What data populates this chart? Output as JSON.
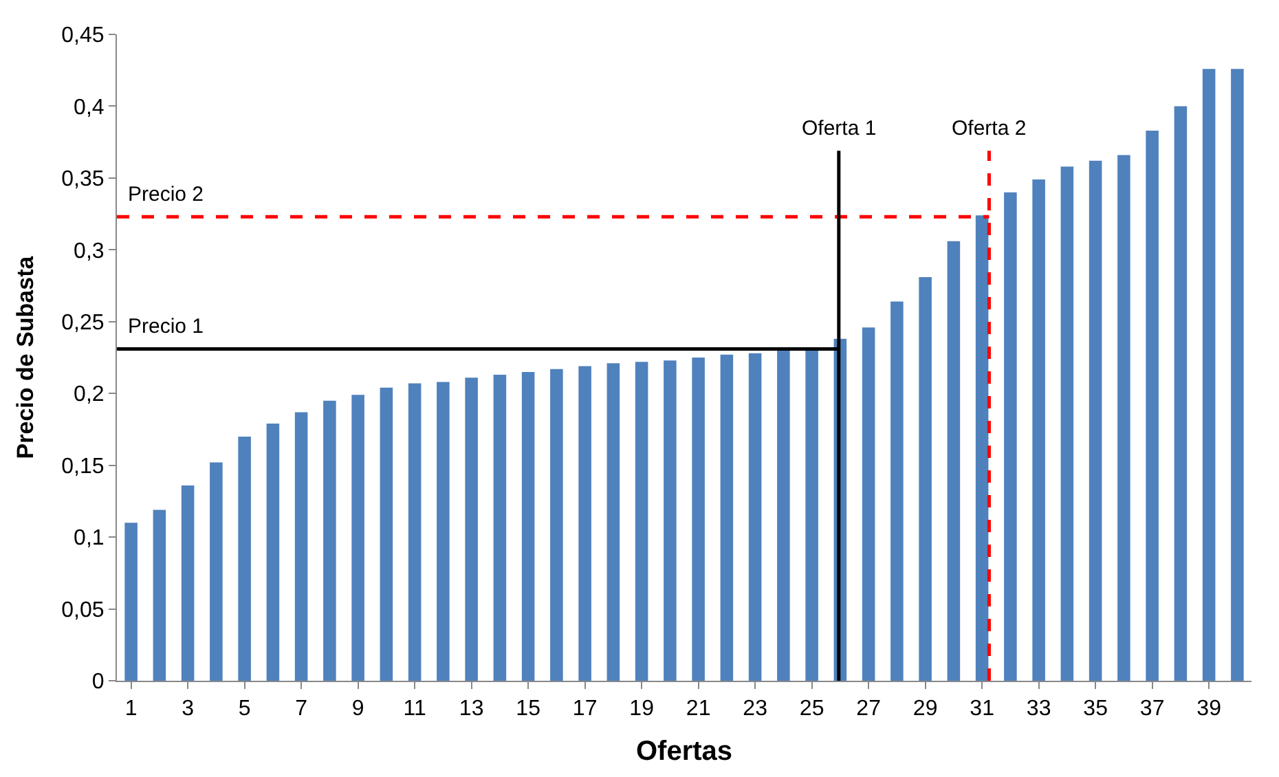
{
  "chart_data": {
    "type": "bar",
    "xlabel": "Ofertas",
    "ylabel": "Precio de Subasta",
    "x": [
      1,
      2,
      3,
      4,
      5,
      6,
      7,
      8,
      9,
      10,
      11,
      12,
      13,
      14,
      15,
      16,
      17,
      18,
      19,
      20,
      21,
      22,
      23,
      24,
      25,
      26,
      27,
      28,
      29,
      30,
      31,
      32,
      33,
      34,
      35,
      36,
      37,
      38,
      39,
      40
    ],
    "values": [
      0.11,
      0.119,
      0.136,
      0.152,
      0.17,
      0.179,
      0.187,
      0.195,
      0.199,
      0.204,
      0.207,
      0.208,
      0.211,
      0.213,
      0.215,
      0.217,
      0.219,
      0.221,
      0.222,
      0.223,
      0.225,
      0.227,
      0.228,
      0.23,
      0.231,
      0.238,
      0.246,
      0.264,
      0.281,
      0.306,
      0.324,
      0.34,
      0.349,
      0.358,
      0.362,
      0.366,
      0.383,
      0.4,
      0.426,
      0.426
    ],
    "color": "#4f81bd",
    "xlim": [
      0.5,
      40.5
    ],
    "xticks": [
      1,
      3,
      5,
      7,
      9,
      11,
      13,
      15,
      17,
      19,
      21,
      23,
      25,
      27,
      29,
      31,
      33,
      35,
      37,
      39
    ],
    "ylim": [
      0,
      0.45
    ],
    "yticks": [
      {
        "value": 0,
        "label": "0"
      },
      {
        "value": 0.05,
        "label": "0,05"
      },
      {
        "value": 0.1,
        "label": "0,1"
      },
      {
        "value": 0.15,
        "label": "0,15"
      },
      {
        "value": 0.2,
        "label": "0,2"
      },
      {
        "value": 0.25,
        "label": "0,25"
      },
      {
        "value": 0.3,
        "label": "0,3"
      },
      {
        "value": 0.35,
        "label": "0,35"
      },
      {
        "value": 0.4,
        "label": "0,4"
      },
      {
        "value": 0.45,
        "label": "0,45"
      }
    ],
    "ref_lines": [
      {
        "axis": "y",
        "value": 0.231,
        "label": "Precio 1",
        "color": "#000000",
        "line_style": "solid"
      },
      {
        "axis": "y",
        "value": 0.323,
        "label": "Precio 2",
        "color": "#ff0000",
        "line_style": "dashed"
      },
      {
        "axis": "x",
        "value": 25.95,
        "label": "Oferta 1",
        "color": "#000000",
        "line_style": "solid"
      },
      {
        "axis": "x",
        "value": 31.25,
        "label": "Oferta 2",
        "color": "#ff0000",
        "line_style": "dashed"
      }
    ]
  }
}
